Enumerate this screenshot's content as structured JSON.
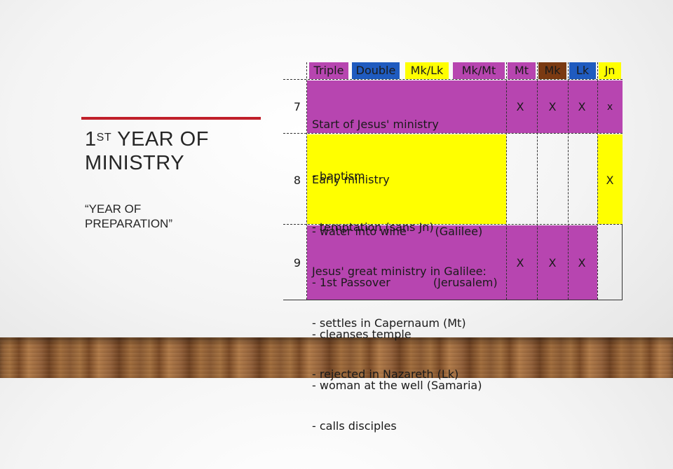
{
  "slide": {
    "title_main": "1",
    "title_sup": "ST",
    "title_rest_line1": " YEAR OF",
    "title_line2": "MINISTRY",
    "subtitle_line1": "“YEAR OF",
    "subtitle_line2": "PREPARATION”"
  },
  "colors": {
    "triple": "#b745b0",
    "double": "#1f5bbf",
    "mk_lk": "#ffff00",
    "mk_mt": "#b745b0",
    "mt": "#b745b0",
    "mk": "#7a3a12",
    "lk": "#1f5bbf",
    "jn": "#ffff00",
    "row7": "#b745b0",
    "row8": "#ffff00",
    "row9": "#b745b0"
  },
  "header": {
    "triple": "Triple",
    "double": "Double",
    "mk_lk": "Mk/Lk",
    "mk_mt": "Mk/Mt",
    "mt": "Mt",
    "mk": "Mk",
    "lk": "Lk",
    "jn": "Jn"
  },
  "rows": [
    {
      "number": "7",
      "lines": [
        "Start of Jesus' ministry",
        "- baptism",
        "- temptation (sans Jn)"
      ],
      "mt": "X",
      "mk": "X",
      "lk": "X",
      "jn": "x"
    },
    {
      "number": "8",
      "lines": [
        "Early ministry",
        "- water into wine        (Galilee)",
        "- 1st Passover            (Jerusalem)",
        "- cleanses temple",
        "- woman at the well (Samaria)"
      ],
      "mt": "",
      "mk": "",
      "lk": "",
      "jn": "X"
    },
    {
      "number": "9",
      "lines": [
        "Jesus' great ministry in Galilee:",
        "- settles in Capernaum (Mt)",
        "- rejected in Nazareth (Lk)",
        "- calls disciples"
      ],
      "mt": "X",
      "mk": "X",
      "lk": "X",
      "jn": ""
    }
  ]
}
